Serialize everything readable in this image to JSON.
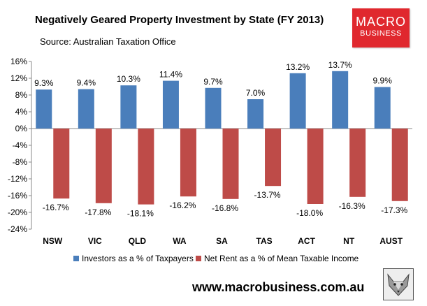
{
  "header": {
    "title": "Negatively Geared Property Investment  by State (FY 2013)",
    "source": "Source: Australian Taxation Office"
  },
  "logo": {
    "line1": "MACRO",
    "line2": "BUSINESS",
    "color": "#e0282e"
  },
  "footer": {
    "url": "www.macrobusiness.com.au"
  },
  "chart_data": {
    "type": "bar",
    "title": "Negatively Geared Property Investment  by State (FY 2013)",
    "categories": [
      "NSW",
      "VIC",
      "QLD",
      "WA",
      "SA",
      "TAS",
      "ACT",
      "NT",
      "AUST"
    ],
    "series": [
      {
        "name": "Investors as a % of Taxpayers",
        "color": "#4a7ebb",
        "values": [
          9.3,
          9.4,
          10.3,
          11.4,
          9.7,
          7.0,
          13.2,
          13.7,
          9.9
        ],
        "labels": [
          "9.3%",
          "9.4%",
          "10.3%",
          "11.4%",
          "9.7%",
          "7.0%",
          "13.2%",
          "13.7%",
          "9.9%"
        ]
      },
      {
        "name": "Net Rent as a % of Mean Taxable Income",
        "color": "#be4b48",
        "values": [
          -16.7,
          -17.8,
          -18.1,
          -16.2,
          -16.8,
          -13.7,
          -18.0,
          -16.3,
          -17.3
        ],
        "labels": [
          "-16.7%",
          "-17.8%",
          "-18.1%",
          "-16.2%",
          "-16.8%",
          "-13.7%",
          "-18.0%",
          "-16.3%",
          "-17.3%"
        ]
      }
    ],
    "ylim": [
      -24,
      16
    ],
    "yticks": [
      16,
      12,
      8,
      4,
      0,
      -4,
      -8,
      -12,
      -16,
      -20,
      -24
    ],
    "ytick_labels": [
      "16%",
      "12%",
      "8%",
      "4%",
      "0%",
      "-4%",
      "-8%",
      "-12%",
      "-16%",
      "-20%",
      "-24%"
    ],
    "grid": false,
    "legend": "bottom",
    "xlabel": "",
    "ylabel": ""
  }
}
